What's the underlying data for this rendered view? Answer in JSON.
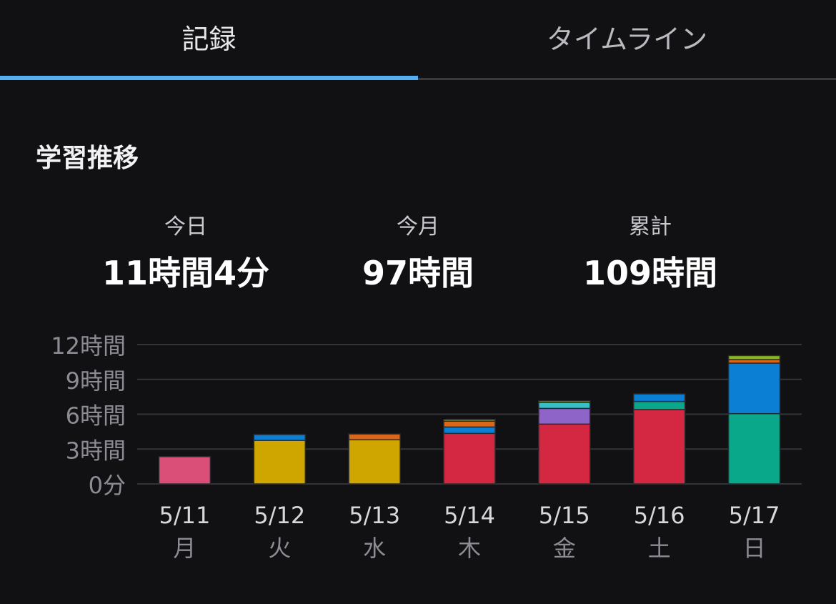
{
  "tabs": [
    {
      "label": "記録",
      "active": true
    },
    {
      "label": "タイムライン",
      "active": false
    }
  ],
  "section": {
    "title": "学習推移"
  },
  "stats": [
    {
      "label": "今日",
      "value": "11時間4分"
    },
    {
      "label": "今月",
      "value": "97時間"
    },
    {
      "label": "累計",
      "value": "109時間"
    }
  ],
  "chart_data": {
    "type": "bar",
    "stacked": true,
    "grid": true,
    "y_ticks": [
      {
        "value": 0,
        "label": "0分"
      },
      {
        "value": 3,
        "label": "3時間"
      },
      {
        "value": 6,
        "label": "6時間"
      },
      {
        "value": 9,
        "label": "9時間"
      },
      {
        "value": 12,
        "label": "12時間"
      }
    ],
    "ylim": [
      0,
      12
    ],
    "categories": [
      {
        "date": "5/11",
        "weekday": "月"
      },
      {
        "date": "5/12",
        "weekday": "火"
      },
      {
        "date": "5/13",
        "weekday": "水"
      },
      {
        "date": "5/14",
        "weekday": "木"
      },
      {
        "date": "5/15",
        "weekday": "金"
      },
      {
        "date": "5/16",
        "weekday": "土"
      },
      {
        "date": "5/17",
        "weekday": "日"
      }
    ],
    "stacks": [
      [
        {
          "value": 2.35,
          "color": "#d94f78"
        }
      ],
      [
        {
          "value": 3.75,
          "color": "#cfa500"
        },
        {
          "value": 0.5,
          "color": "#0b7fd4"
        }
      ],
      [
        {
          "value": 3.8,
          "color": "#cfa500"
        },
        {
          "value": 0.5,
          "color": "#d9661a"
        }
      ],
      [
        {
          "value": 4.35,
          "color": "#d42842"
        },
        {
          "value": 0.55,
          "color": "#0b7fd4"
        },
        {
          "value": 0.5,
          "color": "#d9661a"
        },
        {
          "value": 0.15,
          "color": "#8ab81c"
        }
      ],
      [
        {
          "value": 5.15,
          "color": "#d42842"
        },
        {
          "value": 1.35,
          "color": "#8e64c8"
        },
        {
          "value": 0.5,
          "color": "#38c0c8"
        },
        {
          "value": 0.15,
          "color": "#8ab81c"
        }
      ],
      [
        {
          "value": 6.4,
          "color": "#d42842"
        },
        {
          "value": 0.7,
          "color": "#0aa88a"
        },
        {
          "value": 0.65,
          "color": "#0b7fd4"
        }
      ],
      [
        {
          "value": 6.05,
          "color": "#0aa88a"
        },
        {
          "value": 4.35,
          "color": "#0b7fd4"
        },
        {
          "value": 0.3,
          "color": "#d9661a"
        },
        {
          "value": 0.35,
          "color": "#8ab81c"
        }
      ]
    ]
  }
}
